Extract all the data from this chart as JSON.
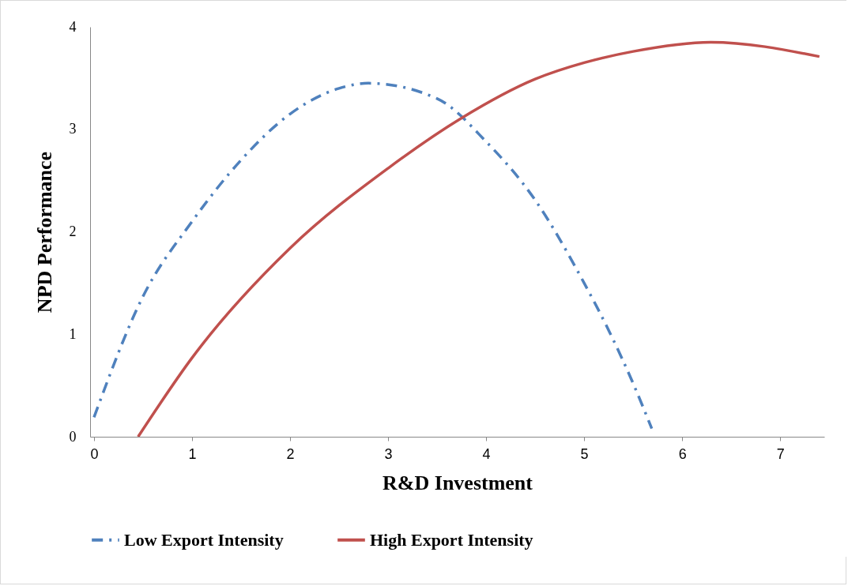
{
  "chart_data": {
    "type": "line",
    "xlabel": "R&D Investment",
    "ylabel": "NPD Performance",
    "xlim": [
      -0.04,
      7.45
    ],
    "xticks": [
      0,
      1,
      2,
      3,
      4,
      5,
      6,
      7
    ],
    "ylim": [
      0,
      4
    ],
    "yticks": [
      0,
      1,
      2,
      3,
      4
    ],
    "grid": false,
    "legend": "bottom",
    "marker": "none",
    "series": [
      {
        "name": "Low Export Intensity",
        "color": "#4f81bd",
        "line_style": "dashed",
        "x": [
          0,
          0.5,
          1,
          1.5,
          2,
          2.5,
          2.8,
          3.5,
          4,
          4.5,
          5,
          5.26,
          5.5,
          5.69
        ],
        "values": [
          0.19,
          1.37,
          2.1,
          2.7,
          3.15,
          3.4,
          3.45,
          3.3,
          2.88,
          2.31,
          1.5,
          1.02,
          0.52,
          0.08
        ]
      },
      {
        "name": "High Export Intensity",
        "color": "#c0504d",
        "line_style": "solid",
        "x": [
          0.45,
          1,
          2,
          3,
          3.75,
          4.5,
          5,
          5.5,
          6.29,
          7.4
        ],
        "values": [
          0,
          0.77,
          1.84,
          2.62,
          3.11,
          3.49,
          3.65,
          3.76,
          3.85,
          3.71
        ]
      }
    ]
  }
}
